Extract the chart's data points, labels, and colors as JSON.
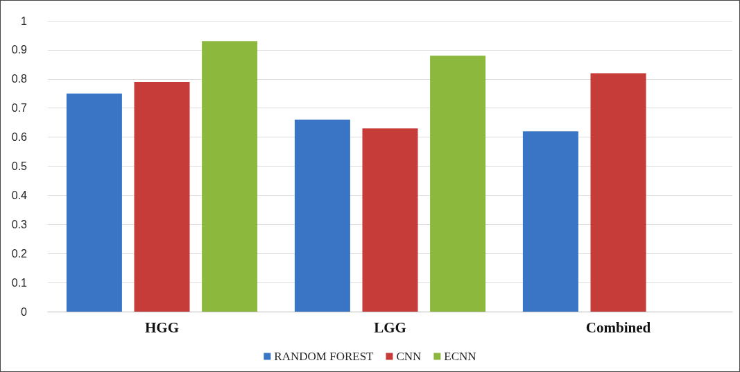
{
  "chart_data": {
    "type": "bar",
    "categories": [
      "HGG",
      "LGG",
      "Combined"
    ],
    "series": [
      {
        "name": "RANDOM FOREST",
        "color": "#3a74c4",
        "values": [
          0.75,
          0.66,
          0.62
        ]
      },
      {
        "name": "CNN",
        "color": "#c63c38",
        "values": [
          0.79,
          0.63,
          0.82
        ]
      },
      {
        "name": "ECNN",
        "color": "#8cb83e",
        "values": [
          0.93,
          0.88,
          null
        ]
      }
    ],
    "ylim": [
      0,
      1
    ],
    "yticks": [
      0,
      0.1,
      0.2,
      0.3,
      0.4,
      0.5,
      0.6,
      0.7,
      0.8,
      0.9,
      1
    ],
    "grid": "y",
    "legend": "bottom"
  }
}
